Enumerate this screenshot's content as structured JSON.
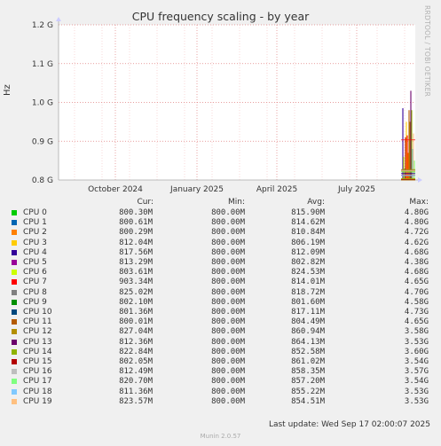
{
  "chart_data": {
    "type": "line",
    "title": "CPU frequency scaling - by year",
    "ylabel": "Hz",
    "side_text": "RRDTOOL / TOBI OETIKER",
    "yticks": [
      "1.2 G",
      "1.1 G",
      "1.0 G",
      "0.9 G",
      "0.8 G"
    ],
    "ylim": [
      800000000,
      1200000000
    ],
    "xticks": [
      "October 2024",
      "January 2025",
      "April 2025",
      "July 2025"
    ],
    "grid": true,
    "legend_headers": {
      "cur": "Cur:",
      "min": "Min:",
      "avg": "Avg:",
      "max": "Max:"
    },
    "series": [
      {
        "name": "CPU 0",
        "color": "#00cc00",
        "cur": "800.30M",
        "min": "800.00M",
        "avg": "815.90M",
        "max": "4.80G"
      },
      {
        "name": "CPU 1",
        "color": "#0066b3",
        "cur": "800.61M",
        "min": "800.00M",
        "avg": "814.62M",
        "max": "4.80G"
      },
      {
        "name": "CPU 2",
        "color": "#ff8000",
        "cur": "800.29M",
        "min": "800.00M",
        "avg": "810.84M",
        "max": "4.72G"
      },
      {
        "name": "CPU 3",
        "color": "#ffcc00",
        "cur": "812.04M",
        "min": "800.00M",
        "avg": "806.19M",
        "max": "4.62G"
      },
      {
        "name": "CPU 4",
        "color": "#330099",
        "cur": "817.56M",
        "min": "800.00M",
        "avg": "812.09M",
        "max": "4.68G"
      },
      {
        "name": "CPU 5",
        "color": "#990099",
        "cur": "813.29M",
        "min": "800.00M",
        "avg": "802.82M",
        "max": "4.38G"
      },
      {
        "name": "CPU 6",
        "color": "#ccff00",
        "cur": "803.61M",
        "min": "800.00M",
        "avg": "824.53M",
        "max": "4.68G"
      },
      {
        "name": "CPU 7",
        "color": "#ff0000",
        "cur": "903.34M",
        "min": "800.00M",
        "avg": "814.01M",
        "max": "4.65G"
      },
      {
        "name": "CPU 8",
        "color": "#808080",
        "cur": "825.02M",
        "min": "800.00M",
        "avg": "818.72M",
        "max": "4.70G"
      },
      {
        "name": "CPU 9",
        "color": "#008f00",
        "cur": "802.10M",
        "min": "800.00M",
        "avg": "801.60M",
        "max": "4.58G"
      },
      {
        "name": "CPU 10",
        "color": "#00487d",
        "cur": "801.36M",
        "min": "800.00M",
        "avg": "817.11M",
        "max": "4.73G"
      },
      {
        "name": "CPU 11",
        "color": "#b35a00",
        "cur": "800.01M",
        "min": "800.00M",
        "avg": "804.49M",
        "max": "4.65G"
      },
      {
        "name": "CPU 12",
        "color": "#b38f00",
        "cur": "827.04M",
        "min": "800.00M",
        "avg": "860.94M",
        "max": "3.58G"
      },
      {
        "name": "CPU 13",
        "color": "#6b006b",
        "cur": "812.36M",
        "min": "800.00M",
        "avg": "864.13M",
        "max": "3.53G"
      },
      {
        "name": "CPU 14",
        "color": "#8fb300",
        "cur": "822.84M",
        "min": "800.00M",
        "avg": "852.58M",
        "max": "3.60G"
      },
      {
        "name": "CPU 15",
        "color": "#b30000",
        "cur": "802.05M",
        "min": "800.00M",
        "avg": "861.02M",
        "max": "3.54G"
      },
      {
        "name": "CPU 16",
        "color": "#bebebe",
        "cur": "812.49M",
        "min": "800.00M",
        "avg": "858.35M",
        "max": "3.57G"
      },
      {
        "name": "CPU 17",
        "color": "#80ff80",
        "cur": "820.70M",
        "min": "800.00M",
        "avg": "857.20M",
        "max": "3.54G"
      },
      {
        "name": "CPU 18",
        "color": "#80c9ff",
        "cur": "811.36M",
        "min": "800.00M",
        "avg": "855.22M",
        "max": "3.53G"
      },
      {
        "name": "CPU 19",
        "color": "#ffc080",
        "cur": "823.57M",
        "min": "800.00M",
        "avg": "854.51M",
        "max": "3.53G"
      }
    ]
  },
  "footer": {
    "last_update": "Last update: Wed Sep 17 02:00:07 2025",
    "version": "Munin 2.0.57"
  }
}
